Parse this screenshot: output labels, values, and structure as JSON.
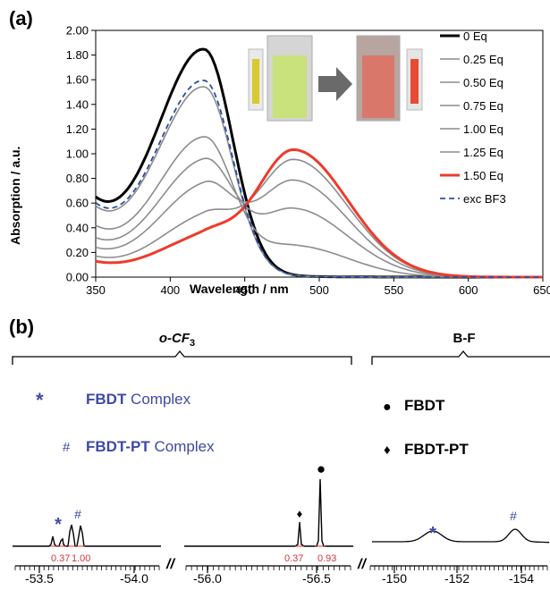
{
  "chart_data": [
    {
      "type": "line",
      "panel_label": "(a)",
      "xlabel": "Wavelength / nm",
      "ylabel": "Absorption / a.u.",
      "xlim": [
        350,
        650
      ],
      "ylim": [
        0,
        2.0
      ],
      "x_ticks": [
        "350",
        "400",
        "450",
        "500",
        "550",
        "600",
        "650"
      ],
      "y_ticks": [
        "0.00",
        "0.20",
        "0.40",
        "0.60",
        "0.80",
        "1.00",
        "1.20",
        "1.40",
        "1.60",
        "1.80",
        "2.00"
      ],
      "legend_position": "right",
      "grid": false,
      "inset": "photos of cuvettes: yellow-green solution → arrow → red solution",
      "series": [
        {
          "name": "0 Eq",
          "color": "#000000",
          "width": 3,
          "dash": "",
          "peak1": 1.8,
          "peak2": 0.0,
          "min365": 0.49
        },
        {
          "name": "0.25 Eq",
          "color": "#8c8c8c",
          "width": 1.6,
          "dash": "",
          "peak1": 1.5,
          "peak2": 0.0,
          "min365": 0.44
        },
        {
          "name": "0.50 Eq",
          "color": "#8c8c8c",
          "width": 1.6,
          "dash": "",
          "peak1": 1.09,
          "peak2": 0.25,
          "min365": 0.32
        },
        {
          "name": "0.75 Eq",
          "color": "#8c8c8c",
          "width": 1.6,
          "dash": "",
          "peak1": 0.9,
          "peak2": 0.55,
          "min365": 0.24
        },
        {
          "name": "1.00 Eq",
          "color": "#8c8c8c",
          "width": 1.6,
          "dash": "",
          "peak1": 0.7,
          "peak2": 0.78,
          "min365": 0.18
        },
        {
          "name": "1.25 Eq",
          "color": "#8c8c8c",
          "width": 1.6,
          "dash": "",
          "peak1": 0.45,
          "peak2": 0.95,
          "min365": 0.13
        },
        {
          "name": "1.50 Eq",
          "color": "#ee3b2b",
          "width": 3,
          "dash": "",
          "peak1": 0.3,
          "peak2": 1.03,
          "min365": 0.1
        },
        {
          "name": "exc BF3",
          "color": "#2b4fa0",
          "width": 1.8,
          "dash": "6,4",
          "peak1": 1.55,
          "peak2": 0.0,
          "min365": 0.46
        }
      ]
    },
    {
      "type": "nmr-spectrum",
      "panel_label": "(b)",
      "groups": [
        {
          "label": "o-CF",
          "subscript": "3"
        },
        {
          "label": "B-F",
          "subscript": ""
        }
      ],
      "legend_left": [
        {
          "symbol": "*",
          "bold": "FBDT",
          "text": " Complex"
        },
        {
          "symbol": "#",
          "bold": "FBDT-PT",
          "text": " Complex"
        }
      ],
      "legend_right": [
        {
          "symbol": "●",
          "text": "FBDT"
        },
        {
          "symbol": "♦",
          "text": "FBDT-PT"
        }
      ],
      "peak_markers": [
        "*",
        "#",
        "♦",
        "●",
        "*",
        "#"
      ],
      "integrals": [
        "0.37",
        "1.00",
        "0.37",
        "0.93"
      ],
      "ticks_1": [
        "-53.5",
        "-54.0"
      ],
      "ticks_2": [
        "-56.0",
        "-56.5"
      ],
      "ticks_3": [
        "-150",
        "-152",
        "-154"
      ],
      "break_symbol": "//"
    }
  ],
  "colors": {
    "blue_label": "#4049a3",
    "red_integral": "#d9343a",
    "red_series": "#ee3b2b",
    "grey_series": "#8c8c8c"
  }
}
